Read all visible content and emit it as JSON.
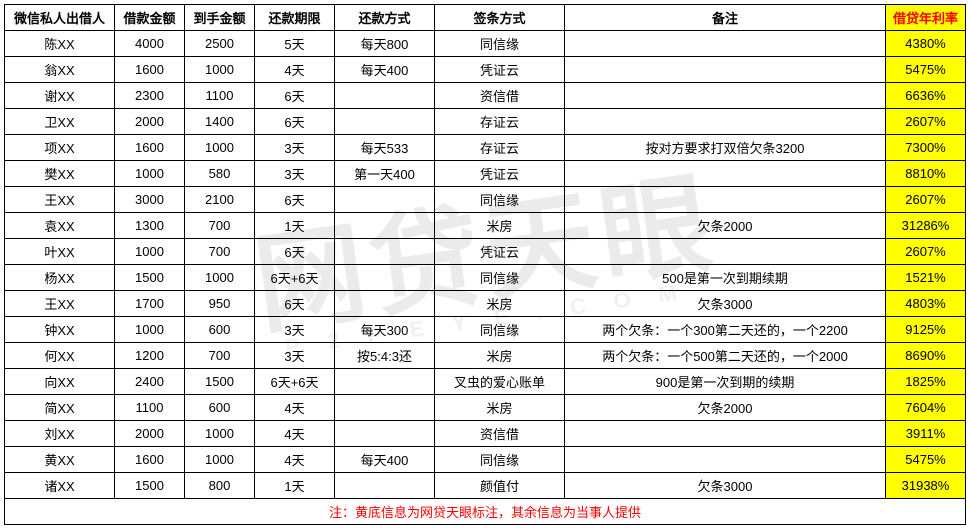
{
  "watermark": {
    "main": "网贷天眼",
    "sub": "P2PEYE.COM"
  },
  "columns": [
    {
      "key": "lender",
      "label": "微信私人出借人",
      "highlight": false,
      "cls": "col-lender"
    },
    {
      "key": "amount",
      "label": "借款金额",
      "highlight": false,
      "cls": "col-amount"
    },
    {
      "key": "received",
      "label": "到手金额",
      "highlight": false,
      "cls": "col-receive"
    },
    {
      "key": "period",
      "label": "还款期限",
      "highlight": false,
      "cls": "col-period"
    },
    {
      "key": "repay",
      "label": "还款方式",
      "highlight": false,
      "cls": "col-repay"
    },
    {
      "key": "sign",
      "label": "签条方式",
      "highlight": false,
      "cls": "col-sign"
    },
    {
      "key": "note",
      "label": "备注",
      "highlight": false,
      "cls": "col-note"
    },
    {
      "key": "apr",
      "label": "借贷年利率",
      "highlight": true,
      "cls": "col-apr"
    }
  ],
  "rows": [
    {
      "lender": "陈XX",
      "amount": "4000",
      "received": "2500",
      "period": "5天",
      "repay": "每天800",
      "sign": "同信缘",
      "note": "",
      "apr": "4380%"
    },
    {
      "lender": "翁XX",
      "amount": "1600",
      "received": "1000",
      "period": "4天",
      "repay": "每天400",
      "sign": "凭证云",
      "note": "",
      "apr": "5475%"
    },
    {
      "lender": "谢XX",
      "amount": "2300",
      "received": "1100",
      "period": "6天",
      "repay": "",
      "sign": "资信借",
      "note": "",
      "apr": "6636%"
    },
    {
      "lender": "卫XX",
      "amount": "2000",
      "received": "1400",
      "period": "6天",
      "repay": "",
      "sign": "存证云",
      "note": "",
      "apr": "2607%"
    },
    {
      "lender": "项XX",
      "amount": "1600",
      "received": "1000",
      "period": "3天",
      "repay": "每天533",
      "sign": "存证云",
      "note": "按对方要求打双倍欠条3200",
      "apr": "7300%"
    },
    {
      "lender": "樊XX",
      "amount": "1000",
      "received": "580",
      "period": "3天",
      "repay": "第一天400",
      "sign": "凭证云",
      "note": "",
      "apr": "8810%"
    },
    {
      "lender": "王XX",
      "amount": "3000",
      "received": "2100",
      "period": "6天",
      "repay": "",
      "sign": "同信缘",
      "note": "",
      "apr": "2607%"
    },
    {
      "lender": "袁XX",
      "amount": "1300",
      "received": "700",
      "period": "1天",
      "repay": "",
      "sign": "米房",
      "note": "欠条2000",
      "apr": "31286%"
    },
    {
      "lender": "叶XX",
      "amount": "1000",
      "received": "700",
      "period": "6天",
      "repay": "",
      "sign": "凭证云",
      "note": "",
      "apr": "2607%"
    },
    {
      "lender": "杨XX",
      "amount": "1500",
      "received": "1000",
      "period": "6天+6天",
      "repay": "",
      "sign": "同信缘",
      "note": "500是第一次到期续期",
      "apr": "1521%"
    },
    {
      "lender": "王XX",
      "amount": "1700",
      "received": "950",
      "period": "6天",
      "repay": "",
      "sign": "米房",
      "note": "欠条3000",
      "apr": "4803%"
    },
    {
      "lender": "钟XX",
      "amount": "1000",
      "received": "600",
      "period": "3天",
      "repay": "每天300",
      "sign": "同信缘",
      "note": "两个欠条：一个300第二天还的，一个2200",
      "apr": "9125%"
    },
    {
      "lender": "何XX",
      "amount": "1200",
      "received": "700",
      "period": "3天",
      "repay": "按5:4:3还",
      "sign": "米房",
      "note": "两个欠条：一个500第二天还的，一个2000",
      "apr": "8690%"
    },
    {
      "lender": "向XX",
      "amount": "2400",
      "received": "1500",
      "period": "6天+6天",
      "repay": "",
      "sign": "叉虫的爱心账单",
      "note": "900是第一次到期的续期",
      "apr": "1825%"
    },
    {
      "lender": "简XX",
      "amount": "1100",
      "received": "600",
      "period": "4天",
      "repay": "",
      "sign": "米房",
      "note": "欠条2000",
      "apr": "7604%"
    },
    {
      "lender": "刘XX",
      "amount": "2000",
      "received": "1000",
      "period": "4天",
      "repay": "",
      "sign": "资信借",
      "note": "",
      "apr": "3911%"
    },
    {
      "lender": "黄XX",
      "amount": "1600",
      "received": "1000",
      "period": "4天",
      "repay": "每天400",
      "sign": "同信缘",
      "note": "",
      "apr": "5475%"
    },
    {
      "lender": "诸XX",
      "amount": "1500",
      "received": "800",
      "period": "1天",
      "repay": "",
      "sign": "颜值付",
      "note": "欠条3000",
      "apr": "31938%"
    }
  ],
  "footnote": "注：黄底信息为网贷天眼标注，其余信息为当事人提供"
}
